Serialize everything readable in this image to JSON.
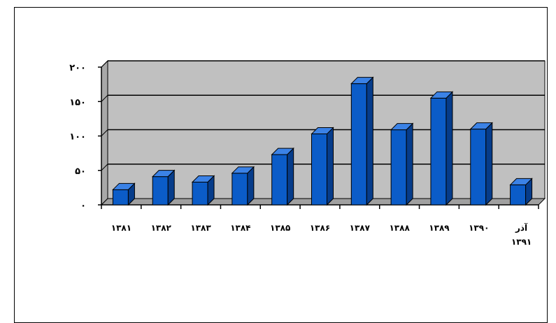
{
  "chart_data": {
    "type": "bar",
    "title": "",
    "xlabel": "",
    "ylabel": "",
    "categories": [
      "۱۳۸۱",
      "۱۳۸۲",
      "۱۳۸۳",
      "۱۳۸۴",
      "۱۳۸۵",
      "۱۳۸۶",
      "۱۳۸۷",
      "۱۳۸۸",
      "۱۳۸۹",
      "۱۳۹۰",
      [
        "آذر",
        "۱۳۹۱"
      ]
    ],
    "values": [
      22,
      41,
      33,
      46,
      73,
      103,
      176,
      109,
      155,
      110,
      29
    ],
    "ylim": [
      0,
      200
    ],
    "yticks": [
      0,
      50,
      100,
      150,
      200
    ],
    "ytick_labels": [
      "۰",
      "۵۰",
      "۱۰۰",
      "۱۵۰",
      "۲۰۰"
    ],
    "grid": true,
    "style": "3d-column",
    "colors": {
      "bar_front": "#0b5cc8",
      "bar_side": "#063c8a",
      "bar_top": "#3b82e6",
      "wall": "#c0c0c0",
      "floor": "#a0a0a0",
      "gridline": "#000000"
    }
  }
}
